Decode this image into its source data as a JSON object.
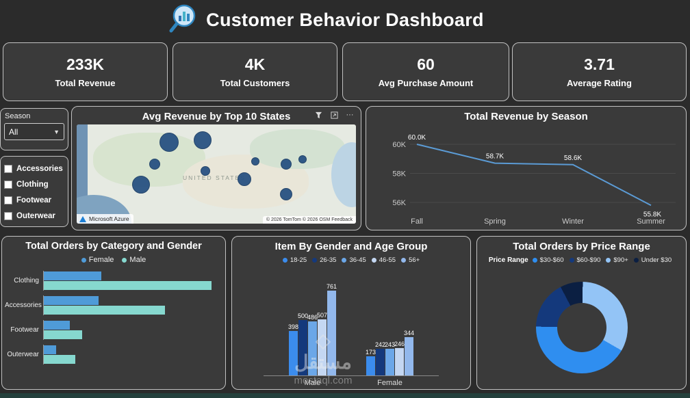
{
  "header": {
    "title": "Customer Behavior Dashboard"
  },
  "kpis": [
    {
      "value": "233K",
      "label": "Total Revenue"
    },
    {
      "value": "4K",
      "label": "Total Customers"
    },
    {
      "value": "60",
      "label": "Avg Purchase Amount"
    },
    {
      "value": "3.71",
      "label": "Average Rating"
    }
  ],
  "filters": {
    "season_label": "Season",
    "season_value": "All",
    "categories": [
      "Accessories",
      "Clothing",
      "Footwear",
      "Outerwear"
    ]
  },
  "map": {
    "title": "Avg Revenue by Top 10 States",
    "region_label": "UNITED STATES",
    "attribution_left": "Microsoft Azure",
    "attribution_right": "© 2026 TomTom © 2026 OSM  Feedback",
    "bubble_color": "#234e80",
    "bubbles": [
      {
        "x": 33,
        "y": 18,
        "r": 14
      },
      {
        "x": 45,
        "y": 16,
        "r": 13
      },
      {
        "x": 28,
        "y": 40,
        "r": 8
      },
      {
        "x": 23,
        "y": 61,
        "r": 13
      },
      {
        "x": 46,
        "y": 47,
        "r": 7
      },
      {
        "x": 60,
        "y": 55,
        "r": 10
      },
      {
        "x": 64,
        "y": 37,
        "r": 6
      },
      {
        "x": 75,
        "y": 40,
        "r": 8
      },
      {
        "x": 81,
        "y": 35,
        "r": 6
      },
      {
        "x": 75,
        "y": 70,
        "r": 9
      }
    ]
  },
  "watermark": {
    "arabic": "مستقل",
    "domain": "mostaql.com"
  },
  "chart_data": [
    {
      "id": "revenue_by_season",
      "type": "line",
      "title": "Total Revenue by Season",
      "categories": [
        "Fall",
        "Spring",
        "Winter",
        "Summer"
      ],
      "values": [
        60.0,
        58.7,
        58.6,
        55.8
      ],
      "labels": [
        "60.0K",
        "58.7K",
        "58.6K",
        "55.8K"
      ],
      "unit": "K",
      "yticks": [
        "60K",
        "58K",
        "56K"
      ],
      "ytick_values": [
        60,
        58,
        56
      ],
      "ylim": [
        55,
        61
      ],
      "grid": true,
      "legend": "none",
      "line_color": "#5b9bd5"
    },
    {
      "id": "orders_by_category_gender",
      "type": "bar",
      "orientation": "horizontal",
      "title": "Total Orders by Category and Gender",
      "categories": [
        "Clothing",
        "Accessories",
        "Footwear",
        "Outerwear"
      ],
      "series": [
        {
          "name": "Female",
          "color": "#4f9bd8",
          "values": [
            430,
            410,
            195,
            90
          ]
        },
        {
          "name": "Male",
          "color": "#86d8cf",
          "values": [
            1250,
            900,
            285,
            235
          ]
        }
      ],
      "xmax": 1300,
      "legend": "top"
    },
    {
      "id": "item_by_gender_age",
      "type": "bar",
      "orientation": "vertical",
      "title": "Item By Gender and Age Group",
      "categories": [
        "Male",
        "Female"
      ],
      "series": [
        {
          "name": "18-25",
          "color": "#3b8ced",
          "values": [
            398,
            173
          ]
        },
        {
          "name": "26-35",
          "color": "#14397c",
          "values": [
            500,
            242
          ]
        },
        {
          "name": "36-45",
          "color": "#6ba7e8",
          "values": [
            486,
            243
          ]
        },
        {
          "name": "46-55",
          "color": "#c4d7f2",
          "values": [
            507,
            246
          ]
        },
        {
          "name": "56+",
          "color": "#92b8ec",
          "values": [
            761,
            344
          ]
        }
      ],
      "ymax": 800,
      "legend": "top",
      "data_labels": true
    },
    {
      "id": "orders_by_price_range",
      "type": "pie",
      "title": "Total Orders by Price Range",
      "legend_title": "Price Range",
      "slices": [
        {
          "label": "$30-$60",
          "color": "#2f8ef0",
          "value": 42
        },
        {
          "label": "$60-$90",
          "color": "#14397c",
          "value": 17
        },
        {
          "label": "$90+",
          "color": "#93c4f6",
          "value": 33
        },
        {
          "label": "Under $30",
          "color": "#0b1f42",
          "value": 8
        }
      ],
      "draw_order": [
        0,
        1,
        3,
        2
      ],
      "start_angle": 120,
      "donut": true,
      "legend": "top"
    }
  ]
}
